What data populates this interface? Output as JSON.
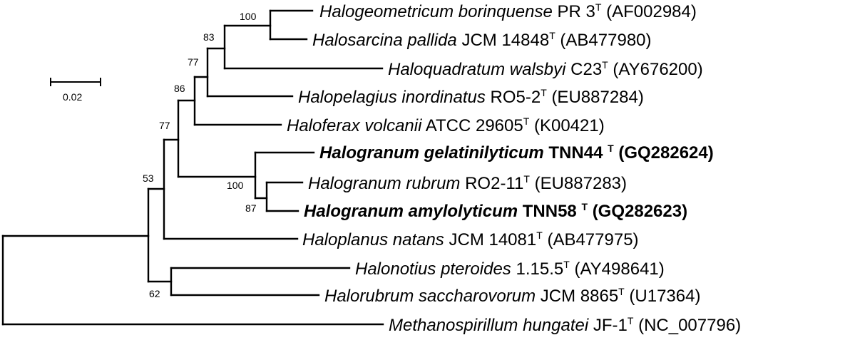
{
  "scale_bar": {
    "label": "0.02"
  },
  "taxa": [
    {
      "species": "Halogeometricum borinquense",
      "strain": "PR 3",
      "type_mark": "T",
      "accession": "(AF002984)",
      "bold": false
    },
    {
      "species": "Halosarcina pallida",
      "strain": "JCM 14848",
      "type_mark": "T",
      "accession": "(AB477980)",
      "bold": false
    },
    {
      "species": "Haloquadratum walsbyi",
      "strain": "C23",
      "type_mark": "T",
      "accession": "(AY676200)",
      "bold": false
    },
    {
      "species": "Halopelagius inordinatus",
      "strain": "RO5-2",
      "type_mark": "T",
      "accession": "(EU887284)",
      "bold": false
    },
    {
      "species": "Haloferax volcanii",
      "strain": "ATCC 29605",
      "type_mark": "T",
      "accession": "(K00421)",
      "bold": false
    },
    {
      "species": "Halogranum gelatinilyticum",
      "strain": "TNN44",
      "type_mark": "T",
      "accession": "(GQ282624)",
      "bold": true
    },
    {
      "species": "Halogranum rubrum",
      "strain": "RO2-11",
      "type_mark": "T",
      "accession": "(EU887283)",
      "bold": false
    },
    {
      "species": "Halogranum amylolyticum",
      "strain": "TNN58",
      "type_mark": "T",
      "accession": "(GQ282623)",
      "bold": true
    },
    {
      "species": "Haloplanus natans",
      "strain": "JCM 14081",
      "type_mark": "T",
      "accession": "(AB477975)",
      "bold": false
    },
    {
      "species": "Halonotius pteroides",
      "strain": "1.15.5",
      "type_mark": "T",
      "accession": "(AY498641)",
      "bold": false
    },
    {
      "species": "Halorubrum saccharovorum",
      "strain": "JCM 8865",
      "type_mark": "T",
      "accession": "(U17364)",
      "bold": false
    },
    {
      "species": "Methanospirillum hungatei",
      "strain": "JF-1",
      "type_mark": "T",
      "accession": "(NC_007796)",
      "bold": false
    }
  ],
  "support_values": [
    "100",
    "83",
    "77",
    "86",
    "77",
    "53",
    "100",
    "87",
    "62"
  ]
}
